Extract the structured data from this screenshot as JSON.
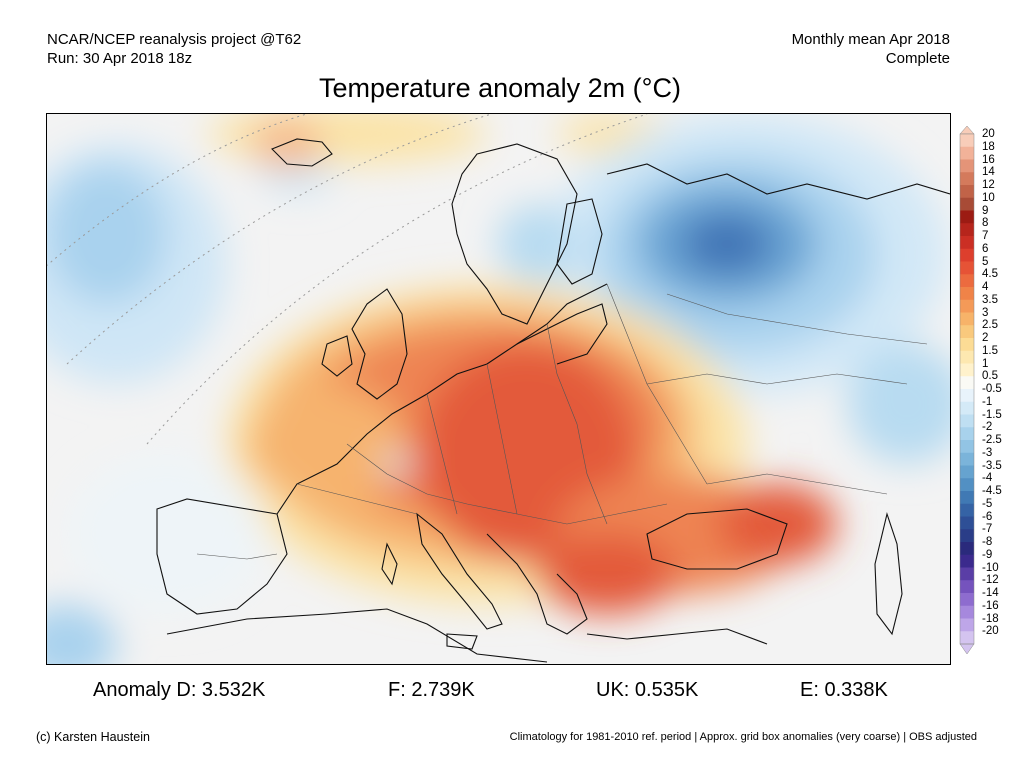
{
  "header": {
    "line1_left": "NCAR/NCEP reanalysis project @T62",
    "line2_left": "Run: 30 Apr 2018 18z",
    "line1_right": "Monthly mean Apr 2018",
    "line2_right": "Complete"
  },
  "title": "Temperature anomaly 2m (°C)",
  "map": {
    "region": "Europe",
    "colors": {
      "land_background": "#f3f3f3",
      "warm_light": "#fbe3a6",
      "warm_mid": "#f6b36e",
      "warm_strong": "#ee8452",
      "hot": "#e35a3a",
      "cold_light": "#d7ecf8",
      "cold_mid": "#9ccbe8",
      "cold_strong": "#5d97cf",
      "cold_core": "#3f73b5"
    }
  },
  "colorbar": {
    "labels": [
      "20",
      "18",
      "16",
      "14",
      "12",
      "10",
      "9",
      "8",
      "7",
      "6",
      "5",
      "4.5",
      "4",
      "3.5",
      "3",
      "2.5",
      "2",
      "1.5",
      "1",
      "0.5",
      "-0.5",
      "-1",
      "-1.5",
      "-2",
      "-2.5",
      "-3",
      "-3.5",
      "-4",
      "-4.5",
      "-5",
      "-6",
      "-7",
      "-8",
      "-9",
      "-10",
      "-12",
      "-14",
      "-16",
      "-18",
      "-20"
    ],
    "colors": [
      "#f8cdb9",
      "#f2b299",
      "#e49478",
      "#d47a5c",
      "#c16348",
      "#a84b36",
      "#9c1b13",
      "#b6251c",
      "#cb2f24",
      "#dd3f2d",
      "#e65336",
      "#ec6b3f",
      "#f08348",
      "#f49a58",
      "#f7b369",
      "#f9c97d",
      "#fcdc95",
      "#fde8b0",
      "#fff2cc",
      "#fafaf5",
      "#e8f3fb",
      "#d4eaf7",
      "#bfdff2",
      "#a8d2ec",
      "#92c4e4",
      "#7bb4da",
      "#66a3cf",
      "#5290c3",
      "#4079b4",
      "#3563a5",
      "#2e4f96",
      "#2a3d88",
      "#2a2a7c",
      "#3b2a8d",
      "#5a3ea6",
      "#7553bd",
      "#8e6ccf",
      "#a688dd",
      "#bea6e8",
      "#d4c4f0"
    ]
  },
  "stats": {
    "anomaly_d": "Anomaly D: 3.532K",
    "f": "F: 2.739K",
    "uk": "UK: 0.535K",
    "e": "E: 0.338K"
  },
  "footer": {
    "left": "(c) Karsten Haustein",
    "right": "Climatology for 1981-2010 ref. period | Approx. grid box anomalies (very coarse) | OBS adjusted"
  }
}
